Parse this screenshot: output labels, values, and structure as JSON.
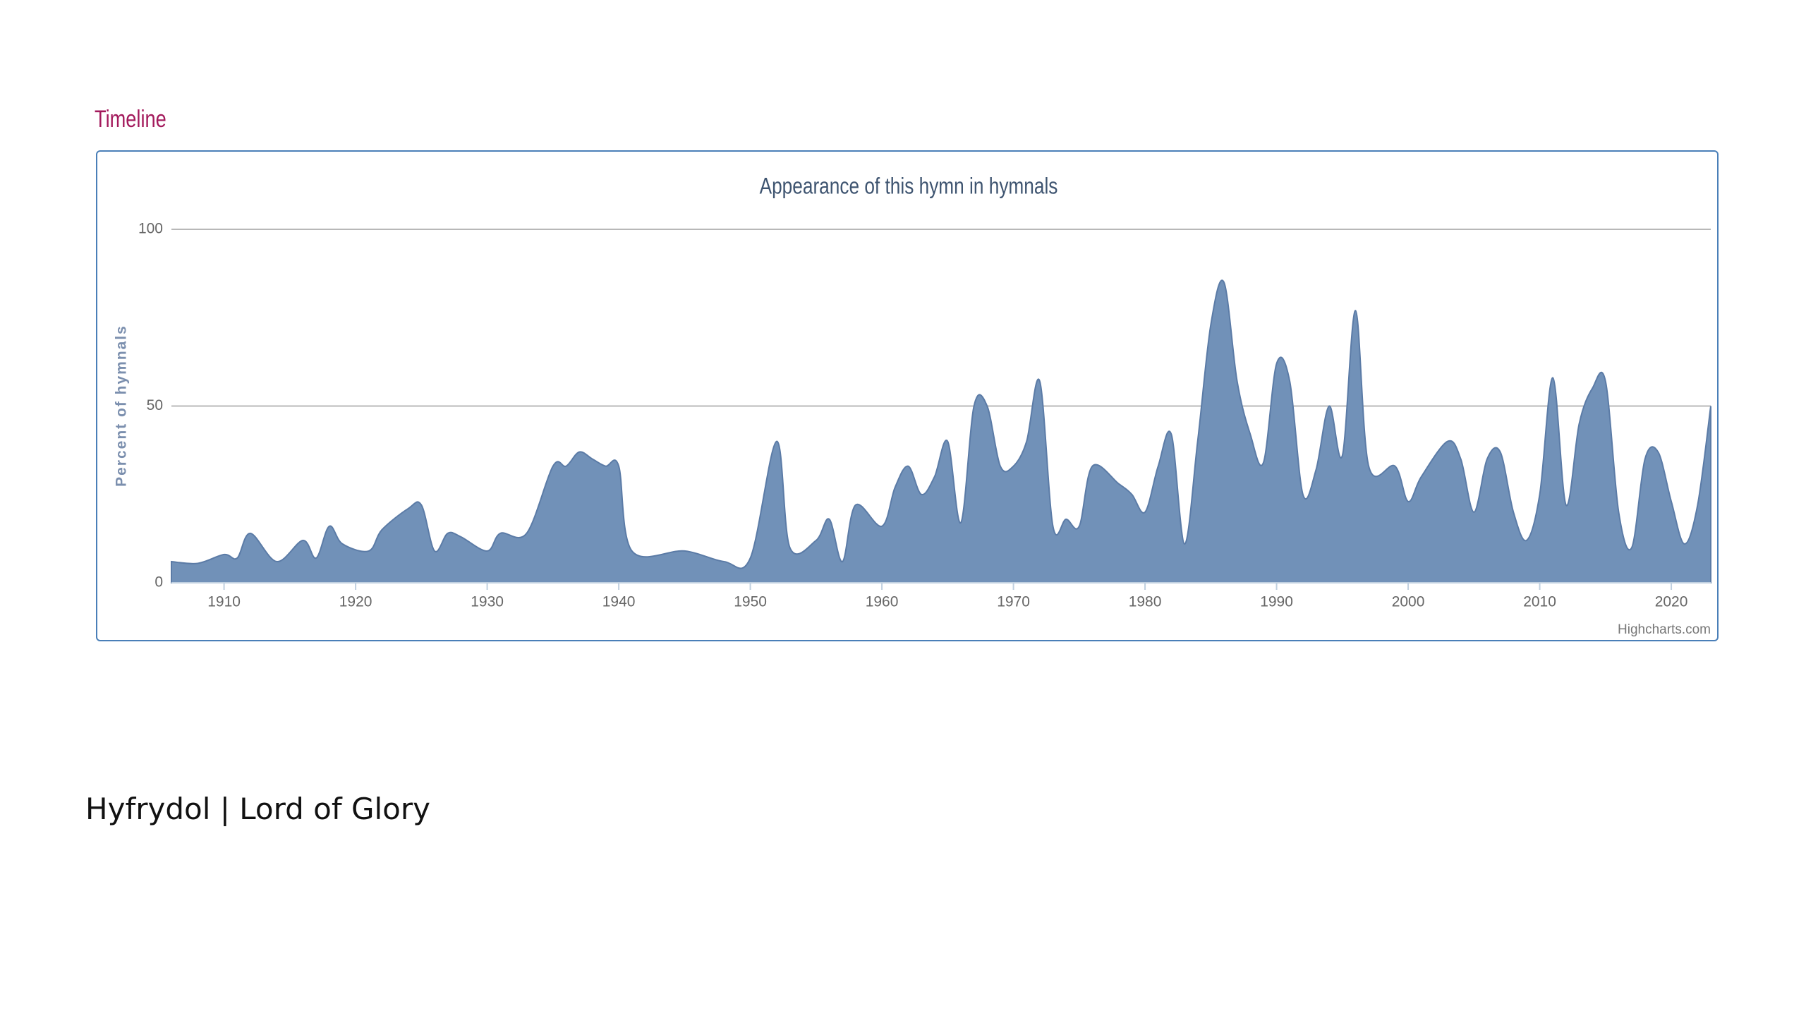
{
  "header": {
    "title": "Timeline"
  },
  "chart_data": {
    "type": "area",
    "title": "Appearance of this hymn in hymnals",
    "y_label": "Percent of hymnals",
    "x": [
      1906,
      1908,
      1910,
      1911,
      1912,
      1914,
      1916,
      1917,
      1918,
      1919,
      1921,
      1922,
      1924,
      1925,
      1926,
      1927,
      1928,
      1930,
      1931,
      1933,
      1935,
      1936,
      1937,
      1938,
      1939,
      1940,
      1941,
      1945,
      1948,
      1950,
      1952,
      1953,
      1955,
      1956,
      1957,
      1958,
      1960,
      1961,
      1962,
      1963,
      1964,
      1965,
      1966,
      1967,
      1968,
      1969,
      1970,
      1971,
      1972,
      1973,
      1974,
      1975,
      1976,
      1978,
      1979,
      1980,
      1981,
      1982,
      1983,
      1984,
      1985,
      1986,
      1987,
      1988,
      1989,
      1990,
      1991,
      1992,
      1993,
      1994,
      1995,
      1996,
      1997,
      1999,
      2000,
      2001,
      2003,
      2004,
      2005,
      2006,
      2007,
      2008,
      2009,
      2010,
      2011,
      2012,
      2013,
      2014,
      2015,
      2016,
      2017,
      2018,
      2019,
      2020,
      2021,
      2022,
      2023
    ],
    "values": [
      6,
      5.5,
      8,
      7,
      14,
      6,
      12,
      7,
      16,
      11,
      9,
      15,
      21,
      22,
      9,
      14,
      13,
      9,
      14,
      14,
      33,
      33,
      37,
      35,
      33,
      33,
      9,
      9,
      6,
      7,
      40,
      10,
      12,
      18,
      6,
      22,
      16,
      27,
      33,
      25,
      30,
      40,
      17,
      50,
      50,
      33,
      33,
      40,
      57,
      16,
      18,
      16,
      33,
      28,
      25,
      20,
      33,
      42,
      11,
      40,
      73,
      85,
      57,
      42,
      34,
      62,
      57,
      25,
      32,
      50,
      36,
      77,
      33,
      33,
      23,
      30,
      40,
      35,
      20,
      35,
      37,
      20,
      12,
      25,
      58,
      22,
      45,
      55,
      57,
      20,
      10,
      35,
      37,
      23,
      11,
      22,
      50
    ],
    "color": "#7191b8",
    "xlim": [
      1906,
      2023
    ],
    "ylim": [
      0,
      100
    ],
    "xticks": [
      1910,
      1920,
      1930,
      1940,
      1950,
      1960,
      1970,
      1980,
      1990,
      2000,
      2010,
      2020
    ],
    "yticks": [
      0,
      50,
      100
    ],
    "grid": true,
    "credit": "Highcharts.com"
  },
  "caption": "Hyfrydol | Lord of Glory"
}
